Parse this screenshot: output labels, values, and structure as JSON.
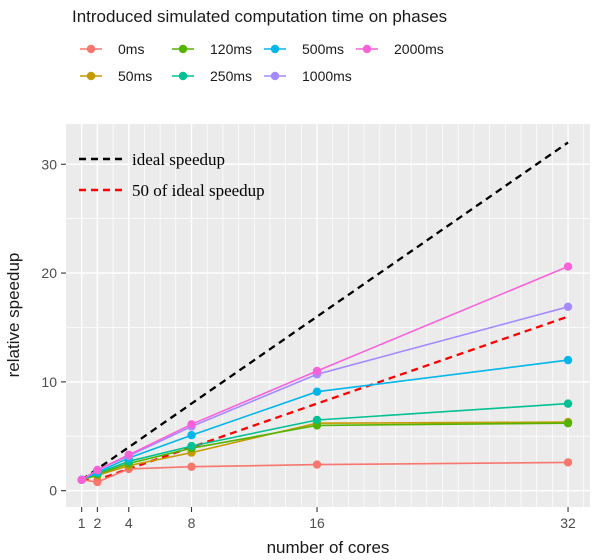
{
  "chart_data": {
    "type": "line",
    "legend_title": "Introduced simulated computation time on phases",
    "legend_position": "top",
    "xlabel": "number of cores",
    "ylabel": "relative speedup",
    "x": [
      1,
      2,
      4,
      8,
      16,
      32
    ],
    "xticks": [
      1,
      2,
      4,
      8,
      16,
      32
    ],
    "yticks": [
      0,
      10,
      20,
      30
    ],
    "xlim": [
      0,
      33.4
    ],
    "ylim": [
      -1.5,
      33.7
    ],
    "grid": true,
    "series": [
      {
        "name": "0ms",
        "color": "#F8766D",
        "values": [
          1.0,
          0.8,
          2.0,
          2.2,
          2.4,
          2.6
        ]
      },
      {
        "name": "50ms",
        "color": "#C49A00",
        "values": [
          1.0,
          1.4,
          2.3,
          3.5,
          6.2,
          6.3
        ]
      },
      {
        "name": "120ms",
        "color": "#53B400",
        "values": [
          1.0,
          1.5,
          2.5,
          3.9,
          6.0,
          6.2
        ]
      },
      {
        "name": "250ms",
        "color": "#00C094",
        "values": [
          1.0,
          1.6,
          2.7,
          4.1,
          6.5,
          8.0
        ]
      },
      {
        "name": "500ms",
        "color": "#00B6EB",
        "values": [
          1.0,
          1.7,
          3.0,
          5.1,
          9.1,
          12.0
        ]
      },
      {
        "name": "1000ms",
        "color": "#A58AFF",
        "values": [
          1.0,
          1.9,
          3.2,
          5.9,
          10.7,
          16.9
        ]
      },
      {
        "name": "2000ms",
        "color": "#FB61D7",
        "values": [
          1.0,
          1.9,
          3.3,
          6.1,
          11.0,
          20.6
        ]
      }
    ],
    "reference_lines": [
      {
        "name": "ideal speedup",
        "color": "#000000",
        "style": "dashed",
        "values": [
          1,
          2,
          4,
          8,
          16,
          32
        ]
      },
      {
        "name": "50 of ideal speedup",
        "color": "#FF0000",
        "style": "dashed",
        "values": [
          1,
          1,
          2,
          4,
          8,
          16
        ]
      }
    ]
  }
}
